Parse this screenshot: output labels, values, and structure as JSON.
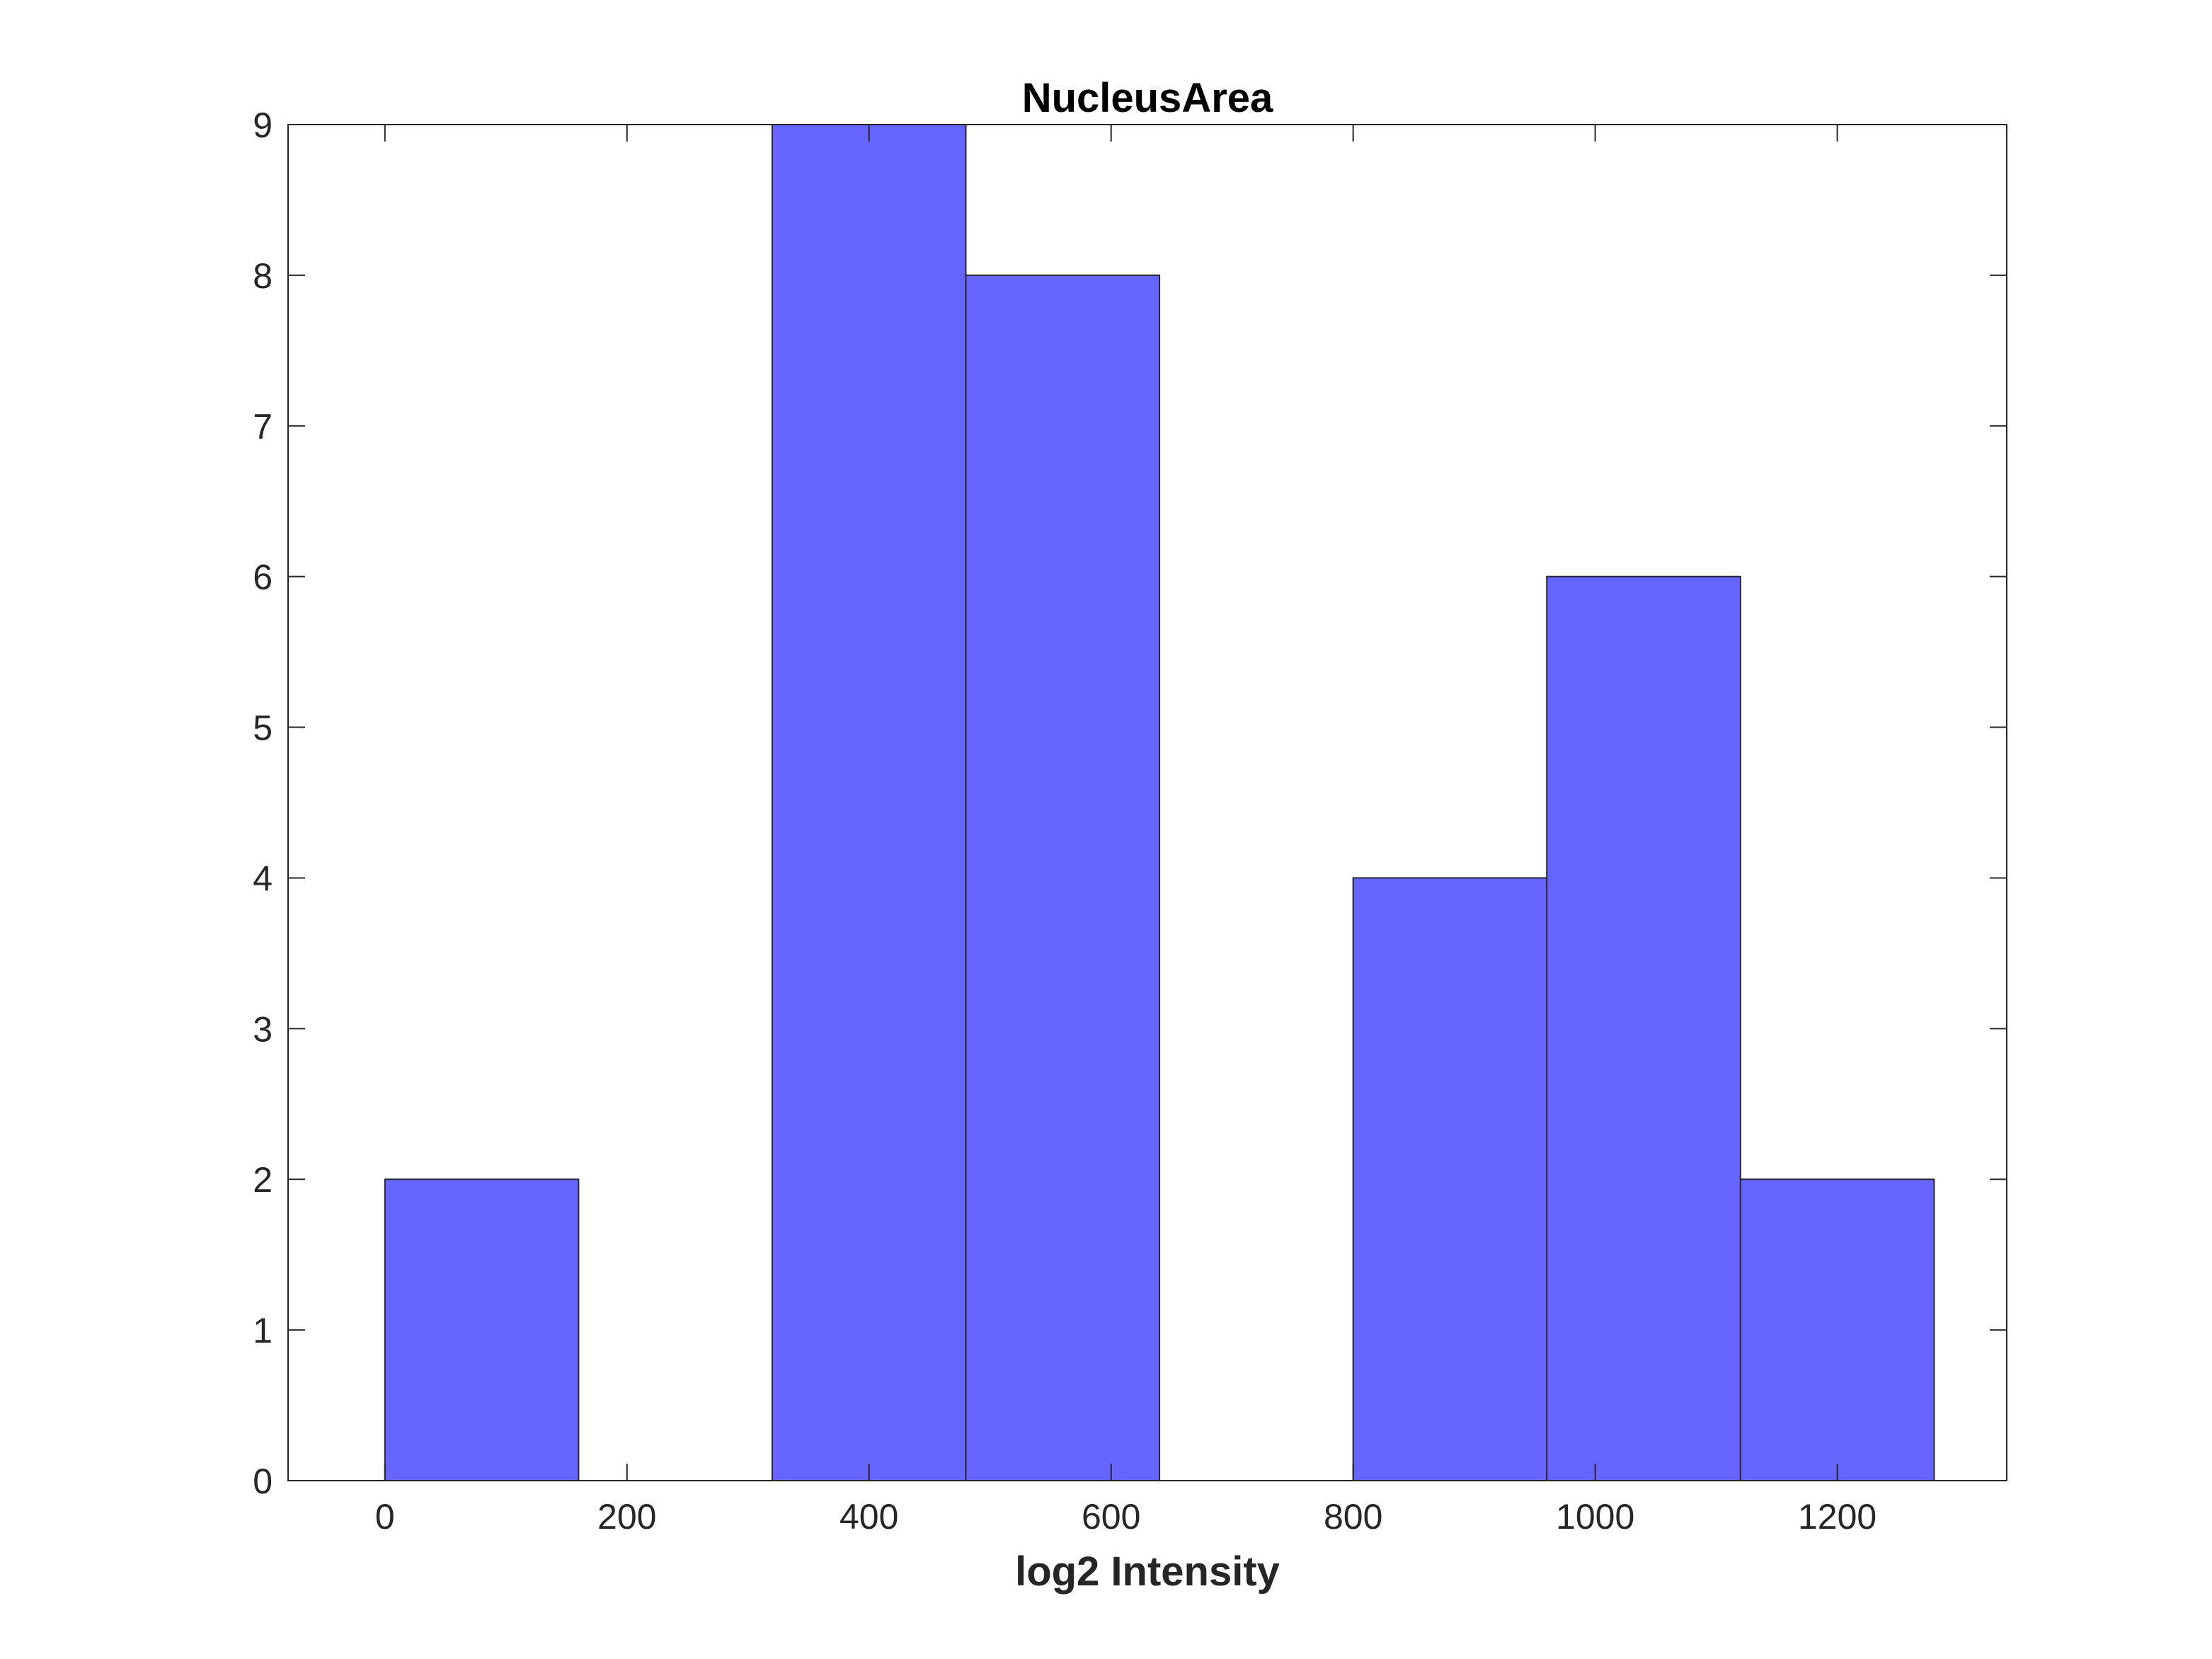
{
  "chart_data": {
    "type": "bar",
    "title": "NucleusArea",
    "xlabel": "log2 Intensity",
    "ylabel": "",
    "xlim": [
      -80,
      1340
    ],
    "ylim": [
      0,
      9
    ],
    "xticks": [
      0,
      200,
      400,
      600,
      800,
      1000,
      1200
    ],
    "yticks": [
      0,
      1,
      2,
      3,
      4,
      5,
      6,
      7,
      8,
      9
    ],
    "bin_edges": [
      0,
      160,
      320,
      480,
      640,
      800,
      960,
      1120,
      1280
    ],
    "values": [
      2,
      0,
      9,
      8,
      0,
      4,
      6,
      2
    ],
    "bar_color": "#6666ff",
    "edge_color": "#262633",
    "grid": false,
    "legend": "none"
  }
}
